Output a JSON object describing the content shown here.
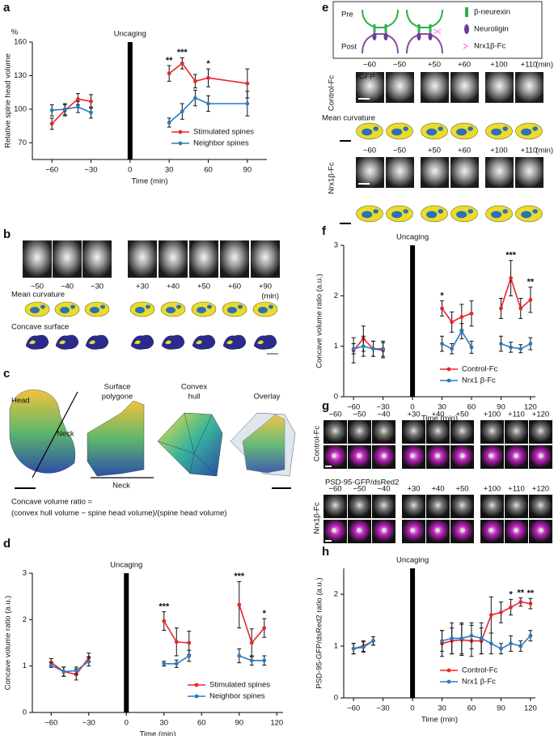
{
  "panels": {
    "b": {
      "label": "b",
      "times": [
        "−50",
        "−40",
        "−30",
        "+30",
        "+40",
        "+50",
        "+60",
        "+90"
      ],
      "unit": "(min)",
      "row_labels": [
        "Mean curvature",
        "Concave surface"
      ]
    },
    "c": {
      "label": "c",
      "head": "Head",
      "neck": "Neck",
      "titles": [
        [
          "Surface",
          "polygone"
        ],
        [
          "Convex",
          "hull"
        ],
        [
          "Overlay"
        ]
      ],
      "formula": [
        "Concave volume ratio =",
        "(convex hull volume − spine head volume)/(spine head volume)"
      ]
    },
    "e": {
      "label": "e",
      "pre": "Pre",
      "post": "Post",
      "legend": [
        "β-neurexin",
        "Neuroligin",
        "Nrx1β-Fc"
      ],
      "times": [
        "−60",
        "−50",
        "+50",
        "+60",
        "+100",
        "+110"
      ],
      "unit": "(min)",
      "channel": "GFP",
      "groups": [
        "Control-Fc",
        "Nrx1β-Fc"
      ],
      "row_label": "Mean curvature"
    },
    "g": {
      "label": "g",
      "times": [
        "−60",
        "−50",
        "−40",
        "+30",
        "+40",
        "+50",
        "+100",
        "+110",
        "+120"
      ],
      "groups": [
        "Control-Fc",
        "Nrx1β-Fc"
      ],
      "channel_green": "PSD-95-GFP",
      "channel_magenta": "/dsRed2"
    }
  },
  "chart_data": [
    {
      "type": "line",
      "panel_label": "a",
      "y_label": "Relative spine head volume",
      "y_unit": "%",
      "x_label": "Time (min)",
      "annotation": {
        "text": "Uncaging",
        "x": 0
      },
      "xlim": [
        -75,
        105
      ],
      "ylim": [
        55,
        160
      ],
      "xticks": [
        {
          "value": -60,
          "label": "−60"
        },
        {
          "value": -30,
          "label": "−30"
        },
        0,
        30,
        60,
        90
      ],
      "yticks": [
        70,
        100,
        130,
        160
      ],
      "x": [
        -60,
        -50,
        -40,
        -30,
        null,
        30,
        40,
        50,
        60,
        90
      ],
      "series": [
        {
          "name": "Stimulated spines",
          "color": "#e8262b",
          "values": [
            87,
            99,
            109,
            107,
            null,
            132,
            141,
            125,
            128,
            123
          ],
          "errors": [
            5,
            5,
            5,
            6,
            null,
            7,
            5,
            6,
            8,
            13
          ]
        },
        {
          "name": "Neighbor spines",
          "color": "#2a7bc0",
          "values": [
            99,
            100,
            102,
            97,
            null,
            88,
            98,
            110,
            105,
            105
          ],
          "errors": [
            5,
            5,
            5,
            5,
            null,
            4,
            7,
            7,
            7,
            11
          ]
        }
      ],
      "significance": [
        {
          "x": 30,
          "label": "**"
        },
        {
          "x": 40,
          "label": "***"
        },
        {
          "x": 60,
          "label": "*"
        }
      ],
      "legend": "lower right"
    },
    {
      "type": "line",
      "panel_label": "d",
      "y_label": "Concave volume ratio (a.u.)",
      "x_label": "Time (min)",
      "annotation": {
        "text": "Uncaging",
        "x": 0
      },
      "xlim": [
        -75,
        125
      ],
      "ylim": [
        0,
        3
      ],
      "xticks": [
        {
          "value": -60,
          "label": "−60"
        },
        {
          "value": -30,
          "label": "−30"
        },
        0,
        30,
        60,
        90,
        120
      ],
      "yticks": [
        0,
        1,
        2,
        3
      ],
      "x": [
        -60,
        -50,
        -40,
        -30,
        null,
        30,
        40,
        50,
        null,
        90,
        100,
        110
      ],
      "series": [
        {
          "name": "Stimulated spines",
          "color": "#e8262b",
          "values": [
            1.08,
            0.88,
            0.82,
            1.18,
            null,
            1.97,
            1.52,
            1.5,
            null,
            2.32,
            1.5,
            1.82
          ],
          "errors": [
            0.08,
            0.1,
            0.12,
            0.1,
            null,
            0.2,
            0.3,
            0.25,
            null,
            0.5,
            0.3,
            0.2
          ]
        },
        {
          "name": "Neighbor spines",
          "color": "#2a7bc0",
          "values": [
            1.02,
            0.88,
            0.9,
            1.1,
            null,
            1.05,
            1.05,
            1.22,
            null,
            1.22,
            1.12,
            1.12
          ],
          "errors": [
            0.05,
            0.1,
            0.08,
            0.1,
            null,
            0.05,
            0.08,
            0.12,
            null,
            0.15,
            0.1,
            0.1
          ]
        }
      ],
      "significance": [
        {
          "x": 30,
          "label": "***"
        },
        {
          "x": 90,
          "label": "***"
        },
        {
          "x": 110,
          "label": "*"
        }
      ],
      "legend": "lower right"
    },
    {
      "type": "line",
      "panel_label": "f",
      "y_label": "Concave volume ratio (a.u.)",
      "x_label": "Time (min)",
      "annotation": {
        "text": "Uncaging",
        "x": 0
      },
      "xlim": [
        -70,
        125
      ],
      "ylim": [
        0,
        3
      ],
      "xticks": [
        {
          "value": -60,
          "label": "−60"
        },
        {
          "value": -30,
          "label": "−30"
        },
        0,
        30,
        60,
        90,
        120
      ],
      "yticks": [
        0,
        1,
        2,
        3
      ],
      "x": [
        -60,
        -50,
        -40,
        -30,
        null,
        30,
        40,
        50,
        60,
        null,
        90,
        100,
        110,
        120
      ],
      "series": [
        {
          "name": "Control-Fc",
          "color": "#e8262b",
          "values": [
            0.92,
            1.15,
            0.95,
            0.92,
            null,
            1.75,
            1.48,
            1.58,
            1.65,
            null,
            1.75,
            2.35,
            1.75,
            1.92
          ],
          "errors": [
            0.25,
            0.25,
            0.15,
            0.15,
            null,
            0.15,
            0.2,
            0.25,
            0.25,
            null,
            0.2,
            0.35,
            0.2,
            0.25
          ]
        },
        {
          "name": "Nrx1 β-Fc",
          "color": "#2a7bc0",
          "values": [
            0.95,
            1.0,
            0.95,
            0.95,
            null,
            1.05,
            0.95,
            1.3,
            0.98,
            null,
            1.05,
            0.98,
            0.95,
            1.05
          ],
          "errors": [
            0.1,
            0.2,
            0.15,
            0.15,
            null,
            0.15,
            0.1,
            0.15,
            0.12,
            null,
            0.15,
            0.1,
            0.08,
            0.12
          ]
        }
      ],
      "significance": [
        {
          "x": 30,
          "label": "*"
        },
        {
          "x": 100,
          "label": "***"
        },
        {
          "x": 120,
          "label": "**"
        }
      ],
      "legend": "lower right"
    },
    {
      "type": "line",
      "panel_label": "h",
      "y_label": "PSD-95-GFP/dsRed2 ratio (a.u.)",
      "x_label": "Time (min)",
      "annotation": {
        "text": "Uncaging",
        "x": 0
      },
      "xlim": [
        -70,
        125
      ],
      "ylim": [
        0,
        2.5
      ],
      "xticks": [
        {
          "value": -60,
          "label": "−60"
        },
        {
          "value": -30,
          "label": "−30"
        },
        0,
        30,
        60,
        90,
        120
      ],
      "yticks": [
        0,
        1,
        2
      ],
      "x": [
        -60,
        -50,
        -40,
        null,
        30,
        40,
        50,
        60,
        70,
        80,
        90,
        100,
        110,
        120
      ],
      "series": [
        {
          "name": "Control-Fc",
          "color": "#e8262b",
          "values": [
            0.95,
            1.0,
            1.1,
            null,
            1.05,
            1.1,
            1.12,
            1.1,
            1.1,
            1.6,
            1.65,
            1.75,
            1.85,
            1.82
          ],
          "errors": [
            0.1,
            0.1,
            0.08,
            null,
            0.25,
            0.25,
            0.3,
            0.3,
            0.25,
            0.35,
            0.2,
            0.15,
            0.08,
            0.1
          ]
        },
        {
          "name": "Nrx1 β-Fc",
          "color": "#2a7bc0",
          "values": [
            0.95,
            0.98,
            1.1,
            null,
            1.1,
            1.15,
            1.15,
            1.2,
            1.15,
            1.05,
            0.95,
            1.05,
            1.0,
            1.2
          ],
          "errors": [
            0.1,
            0.1,
            0.08,
            null,
            0.2,
            0.3,
            0.3,
            0.25,
            0.3,
            0.2,
            0.1,
            0.15,
            0.1,
            0.1
          ]
        }
      ],
      "significance": [
        {
          "x": 100,
          "label": "*"
        },
        {
          "x": 110,
          "label": "**"
        },
        {
          "x": 120,
          "label": "**"
        }
      ],
      "legend": "lower right"
    }
  ]
}
